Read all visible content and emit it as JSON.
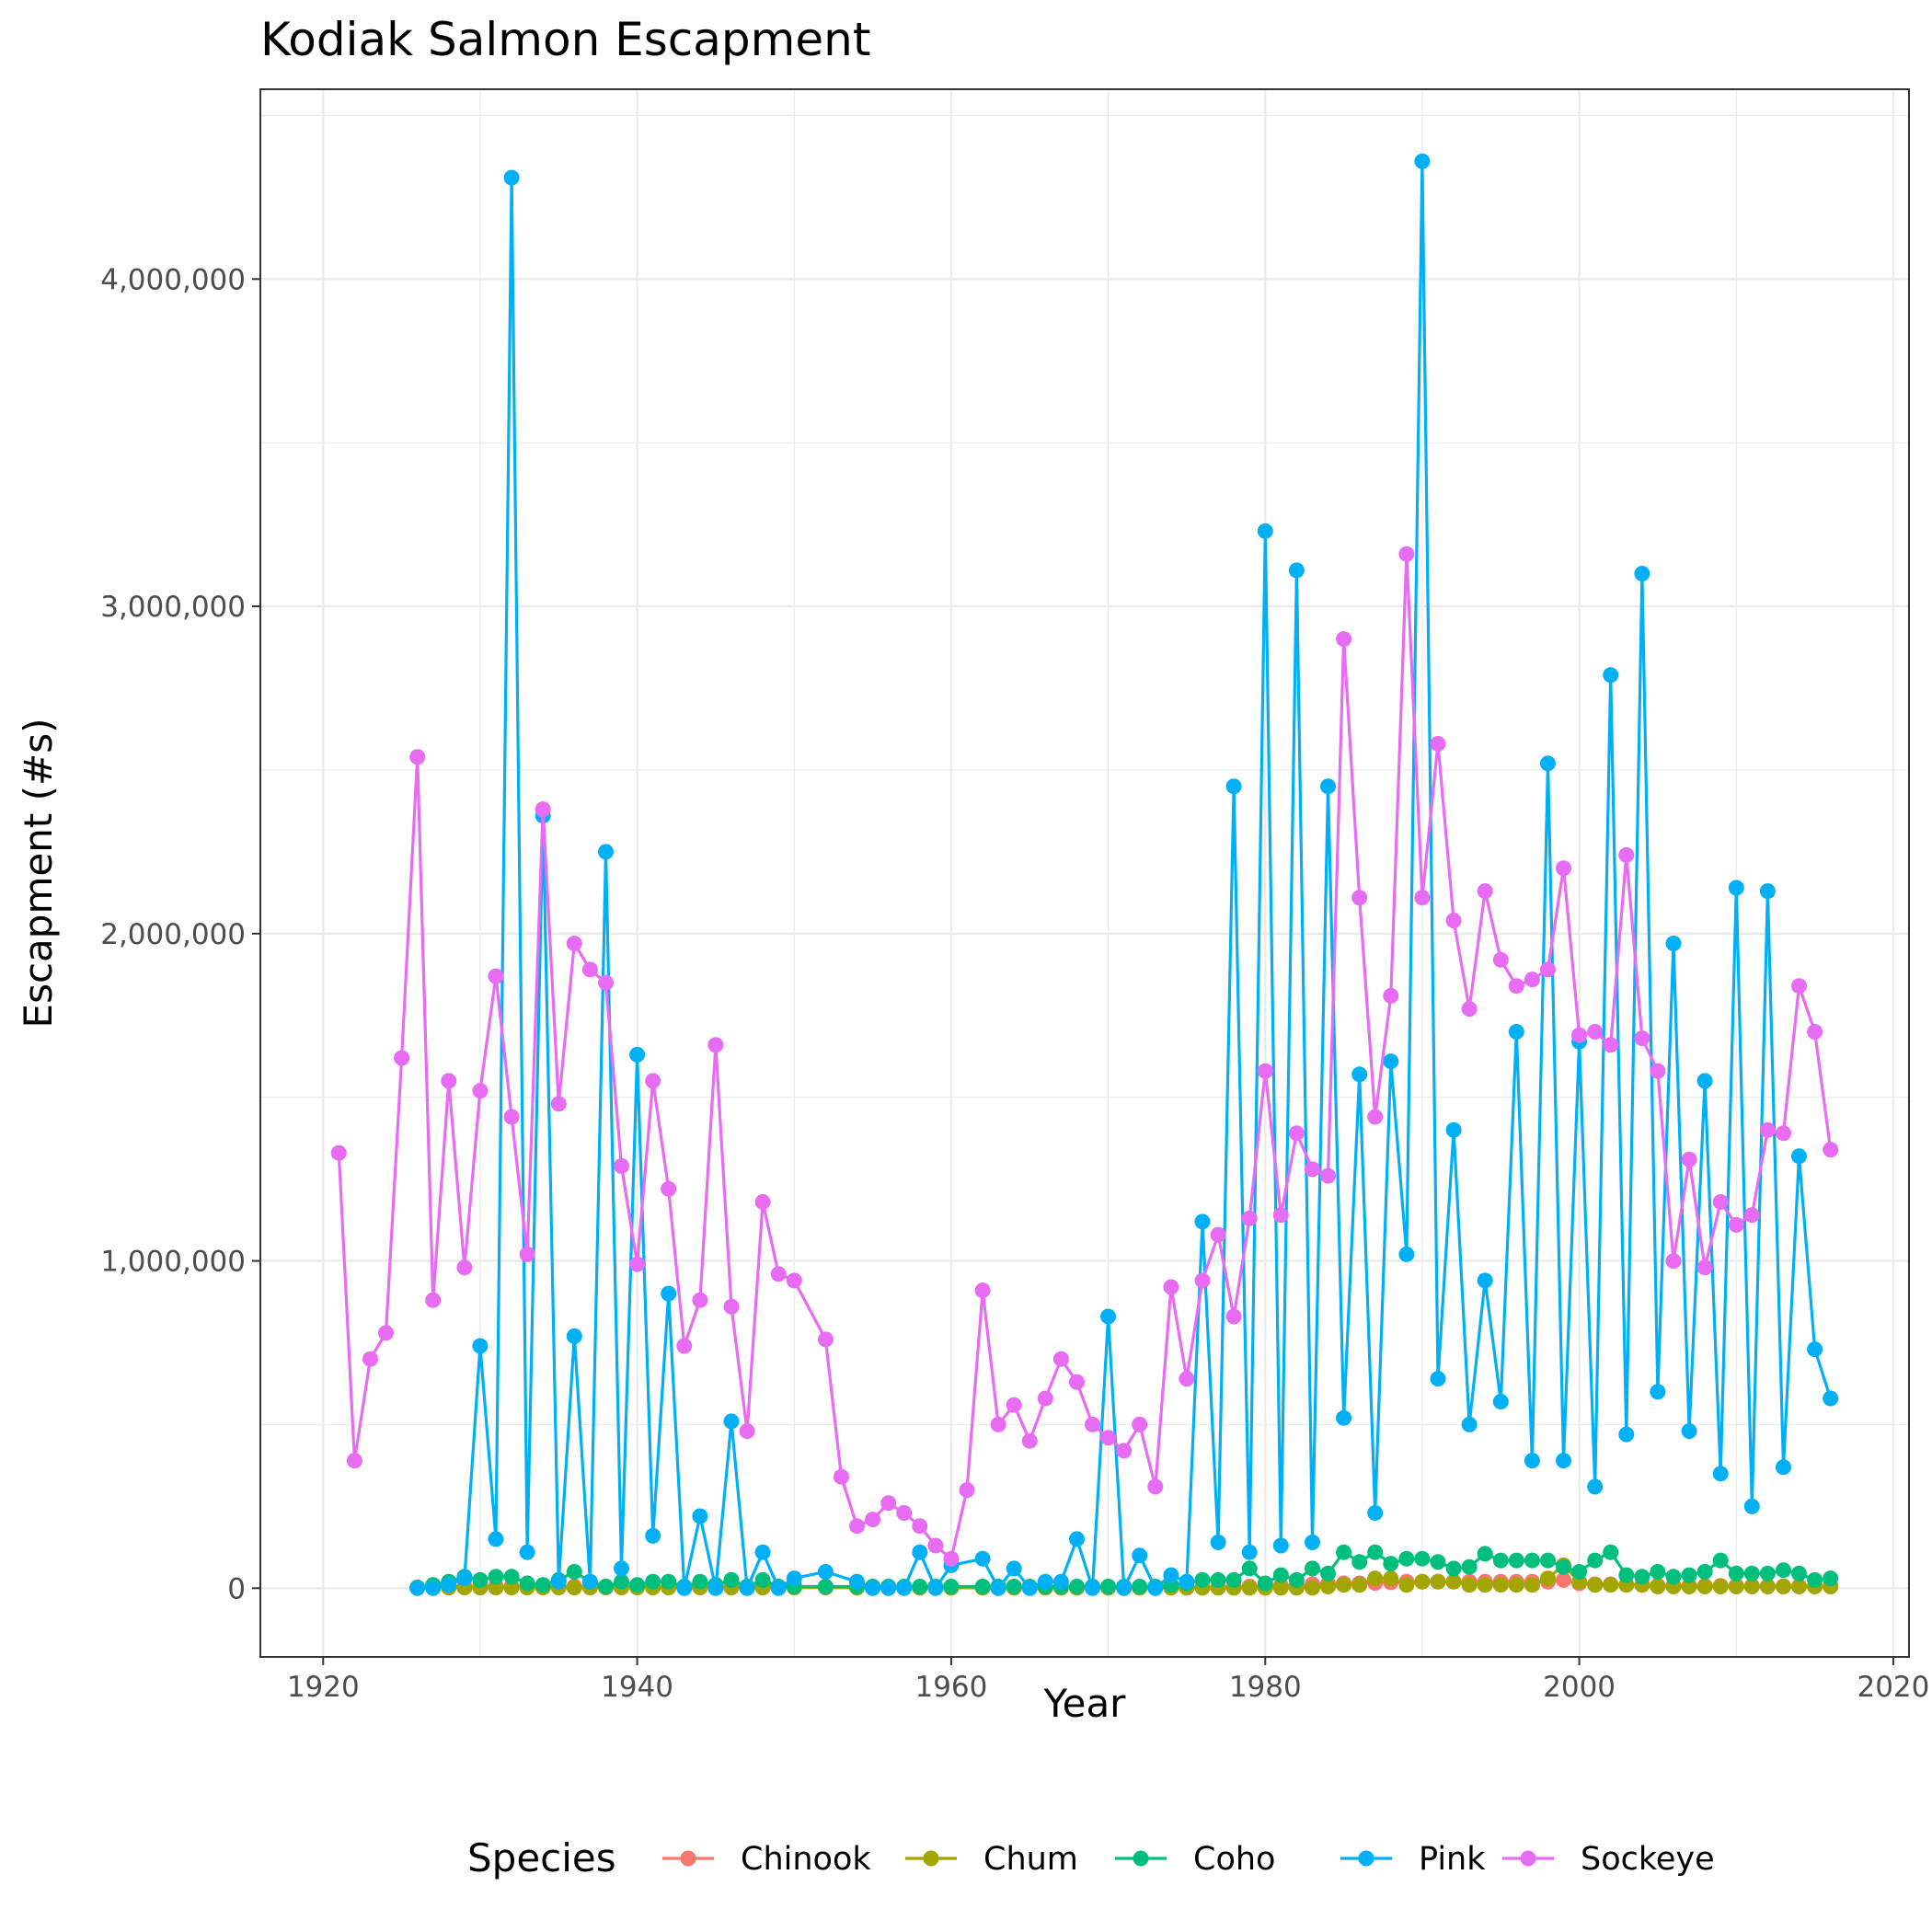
{
  "chart_data": {
    "type": "line",
    "title": "Kodiak Salmon Escapment",
    "xlabel": "Year",
    "ylabel": "Escapment (#s)",
    "xlim": [
      1916,
      2021
    ],
    "ylim": [
      -210000,
      4580000
    ],
    "x_ticks": [
      1920,
      1940,
      1960,
      1980,
      2000,
      2020
    ],
    "x_tick_labels": [
      "1920",
      "1940",
      "1960",
      "1980",
      "2000",
      "2020"
    ],
    "y_ticks": [
      0,
      1000000,
      2000000,
      3000000,
      4000000
    ],
    "y_tick_labels": [
      "0",
      "1,000,000",
      "2,000,000",
      "3,000,000",
      "4,000,000"
    ],
    "y_minor_ticks": [
      500000,
      1500000,
      2500000,
      3500000,
      4500000
    ],
    "grid": true,
    "legend": {
      "title": "Species",
      "position": "bottom"
    },
    "series": [
      {
        "name": "Chinook",
        "color": "#F8766D",
        "x": [
          1926,
          1927,
          1928,
          1929,
          1930,
          1931,
          1932,
          1933,
          1934,
          1935,
          1936,
          1937,
          1938,
          1939,
          1940,
          1941,
          1942,
          1943,
          1944,
          1945,
          1946,
          1947,
          1948,
          1949,
          1950,
          1952,
          1954,
          1955,
          1956,
          1957,
          1958,
          1959,
          1960,
          1962,
          1963,
          1964,
          1965,
          1966,
          1967,
          1968,
          1969,
          1970,
          1971,
          1972,
          1973,
          1974,
          1975,
          1976,
          1977,
          1978,
          1979,
          1980,
          1981,
          1982,
          1983,
          1984,
          1985,
          1986,
          1987,
          1988,
          1989,
          1990,
          1991,
          1992,
          1993,
          1994,
          1995,
          1996,
          1997,
          1998,
          1999,
          2000,
          2001,
          2002,
          2003,
          2004,
          2005,
          2006,
          2007,
          2008,
          2009,
          2010,
          2011,
          2012,
          2013,
          2014,
          2015,
          2016
        ],
        "y": [
          2000,
          2000,
          5000,
          5000,
          5000,
          5000,
          5000,
          5000,
          5000,
          5000,
          5000,
          5000,
          5000,
          5000,
          5000,
          5000,
          5000,
          5000,
          5000,
          5000,
          5000,
          5000,
          5000,
          5000,
          5000,
          5000,
          2000,
          2000,
          2000,
          2000,
          2000,
          2000,
          2000,
          2000,
          2000,
          2000,
          2000,
          2000,
          2000,
          2000,
          2000,
          2000,
          2000,
          2000,
          2000,
          2000,
          3000,
          3000,
          3000,
          3000,
          5000,
          6000,
          8000,
          10000,
          12000,
          14000,
          15000,
          15000,
          16000,
          18000,
          20000,
          20000,
          20000,
          20000,
          20000,
          20000,
          20000,
          20000,
          20000,
          20000,
          25000,
          15000,
          12000,
          12000,
          10000,
          10000,
          8000,
          8000,
          7000,
          7000,
          7000,
          7000,
          7000,
          6000,
          6000,
          6000,
          6000,
          6000
        ]
      },
      {
        "name": "Chum",
        "color": "#A3A500",
        "x": [
          1926,
          1927,
          1928,
          1929,
          1930,
          1931,
          1932,
          1933,
          1934,
          1935,
          1936,
          1937,
          1938,
          1939,
          1940,
          1941,
          1942,
          1943,
          1944,
          1945,
          1946,
          1947,
          1948,
          1949,
          1950,
          1952,
          1954,
          1955,
          1956,
          1957,
          1958,
          1959,
          1960,
          1962,
          1963,
          1964,
          1965,
          1966,
          1967,
          1968,
          1969,
          1970,
          1971,
          1972,
          1973,
          1974,
          1975,
          1976,
          1977,
          1978,
          1979,
          1980,
          1981,
          1982,
          1983,
          1984,
          1985,
          1986,
          1987,
          1988,
          1989,
          1990,
          1991,
          1992,
          1993,
          1994,
          1995,
          1996,
          1997,
          1998,
          1999,
          2000,
          2001,
          2002,
          2003,
          2004,
          2005,
          2006,
          2007,
          2008,
          2009,
          2010,
          2011,
          2012,
          2013,
          2014,
          2015,
          2016
        ],
        "y": [
          2000,
          2000,
          2000,
          2000,
          2000,
          2000,
          2000,
          2000,
          2000,
          2000,
          2000,
          2000,
          2000,
          2000,
          2000,
          2000,
          2000,
          2000,
          2000,
          2000,
          2000,
          2000,
          2000,
          2000,
          2000,
          2000,
          1000,
          1000,
          1000,
          1000,
          1000,
          1000,
          1000,
          1000,
          1000,
          1000,
          1000,
          1000,
          1000,
          1000,
          1000,
          1000,
          1000,
          1000,
          1000,
          1000,
          1000,
          1000,
          1000,
          1000,
          1000,
          1000,
          1000,
          1000,
          1000,
          5000,
          10000,
          10000,
          30000,
          30000,
          10000,
          20000,
          20000,
          20000,
          10000,
          10000,
          10000,
          10000,
          10000,
          30000,
          70000,
          20000,
          10000,
          10000,
          10000,
          10000,
          5000,
          5000,
          5000,
          5000,
          5000,
          5000,
          5000,
          5000,
          5000,
          5000,
          5000,
          5000
        ]
      },
      {
        "name": "Coho",
        "color": "#00BF7D",
        "x": [
          1926,
          1927,
          1928,
          1929,
          1930,
          1931,
          1932,
          1933,
          1934,
          1935,
          1936,
          1937,
          1938,
          1939,
          1940,
          1941,
          1942,
          1943,
          1944,
          1945,
          1946,
          1947,
          1948,
          1949,
          1950,
          1952,
          1954,
          1955,
          1956,
          1957,
          1958,
          1959,
          1960,
          1962,
          1963,
          1964,
          1965,
          1966,
          1967,
          1968,
          1969,
          1970,
          1971,
          1972,
          1973,
          1974,
          1975,
          1976,
          1977,
          1978,
          1979,
          1980,
          1981,
          1982,
          1983,
          1984,
          1985,
          1986,
          1987,
          1988,
          1989,
          1990,
          1991,
          1992,
          1993,
          1994,
          1995,
          1996,
          1997,
          1998,
          1999,
          2000,
          2001,
          2002,
          2003,
          2004,
          2005,
          2006,
          2007,
          2008,
          2009,
          2010,
          2011,
          2012,
          2013,
          2014,
          2015,
          2016
        ],
        "y": [
          2000,
          10000,
          20000,
          35000,
          25000,
          35000,
          35000,
          15000,
          10000,
          25000,
          50000,
          20000,
          5000,
          20000,
          10000,
          20000,
          20000,
          5000,
          20000,
          10000,
          25000,
          5000,
          25000,
          5000,
          5000,
          5000,
          5000,
          5000,
          5000,
          5000,
          5000,
          5000,
          5000,
          5000,
          5000,
          5000,
          5000,
          5000,
          5000,
          5000,
          5000,
          5000,
          5000,
          5000,
          5000,
          10000,
          15000,
          25000,
          25000,
          25000,
          60000,
          15000,
          40000,
          25000,
          60000,
          45000,
          110000,
          80000,
          110000,
          75000,
          90000,
          90000,
          80000,
          60000,
          65000,
          105000,
          85000,
          85000,
          85000,
          85000,
          65000,
          50000,
          85000,
          110000,
          40000,
          35000,
          50000,
          35000,
          40000,
          50000,
          85000,
          45000,
          45000,
          45000,
          55000,
          45000,
          25000,
          30000
        ]
      },
      {
        "name": "Pink",
        "color": "#00B0F6",
        "x": [
          1926,
          1927,
          1928,
          1929,
          1930,
          1931,
          1932,
          1933,
          1934,
          1935,
          1936,
          1937,
          1938,
          1939,
          1940,
          1941,
          1942,
          1943,
          1944,
          1945,
          1946,
          1947,
          1948,
          1949,
          1950,
          1952,
          1954,
          1955,
          1956,
          1957,
          1958,
          1959,
          1960,
          1962,
          1963,
          1964,
          1965,
          1966,
          1967,
          1968,
          1969,
          1970,
          1971,
          1972,
          1973,
          1974,
          1975,
          1976,
          1977,
          1978,
          1979,
          1980,
          1981,
          1982,
          1983,
          1984,
          1985,
          1986,
          1987,
          1988,
          1989,
          1990,
          1991,
          1992,
          1993,
          1994,
          1995,
          1996,
          1997,
          1998,
          1999,
          2000,
          2001,
          2002,
          2003,
          2004,
          2005,
          2006,
          2007,
          2008,
          2009,
          2010,
          2011,
          2012,
          2013,
          2014,
          2015,
          2016
        ],
        "y": [
          0,
          0,
          10000,
          30000,
          740000,
          150000,
          4310000,
          110000,
          2360000,
          20000,
          770000,
          20000,
          2250000,
          60000,
          1630000,
          160000,
          900000,
          0,
          220000,
          0,
          510000,
          0,
          110000,
          0,
          30000,
          50000,
          20000,
          0,
          0,
          0,
          110000,
          0,
          70000,
          90000,
          0,
          60000,
          0,
          20000,
          20000,
          150000,
          0,
          830000,
          0,
          100000,
          0,
          40000,
          20000,
          1120000,
          140000,
          2450000,
          110000,
          3230000,
          130000,
          3110000,
          140000,
          2450000,
          520000,
          1570000,
          230000,
          1610000,
          1020000,
          4360000,
          640000,
          1400000,
          500000,
          940000,
          570000,
          1700000,
          390000,
          2520000,
          390000,
          1670000,
          310000,
          2790000,
          470000,
          3100000,
          600000,
          1970000,
          480000,
          1550000,
          350000,
          2140000,
          250000,
          2130000,
          370000,
          1320000,
          730000,
          580000
        ]
      },
      {
        "name": "Sockeye",
        "color": "#E76BF3",
        "x": [
          1921,
          1922,
          1923,
          1924,
          1925,
          1926,
          1927,
          1928,
          1929,
          1930,
          1931,
          1932,
          1933,
          1934,
          1935,
          1936,
          1937,
          1938,
          1939,
          1940,
          1941,
          1942,
          1943,
          1944,
          1945,
          1946,
          1947,
          1948,
          1949,
          1950,
          1952,
          1953,
          1954,
          1955,
          1956,
          1957,
          1958,
          1959,
          1960,
          1961,
          1962,
          1963,
          1964,
          1965,
          1966,
          1967,
          1968,
          1969,
          1970,
          1971,
          1972,
          1973,
          1974,
          1975,
          1976,
          1977,
          1978,
          1979,
          1980,
          1981,
          1982,
          1983,
          1984,
          1985,
          1986,
          1987,
          1988,
          1989,
          1990,
          1991,
          1992,
          1993,
          1994,
          1995,
          1996,
          1997,
          1998,
          1999,
          2000,
          2001,
          2002,
          2003,
          2004,
          2005,
          2006,
          2007,
          2008,
          2009,
          2010,
          2011,
          2012,
          2013,
          2014,
          2015,
          2016
        ],
        "y": [
          1330000,
          390000,
          700000,
          780000,
          1620000,
          2540000,
          880000,
          1550000,
          980000,
          1520000,
          1870000,
          1440000,
          1020000,
          2380000,
          1480000,
          1970000,
          1890000,
          1850000,
          1290000,
          990000,
          1550000,
          1220000,
          740000,
          880000,
          1660000,
          860000,
          480000,
          1180000,
          960000,
          940000,
          760000,
          340000,
          190000,
          210000,
          260000,
          230000,
          190000,
          130000,
          90000,
          300000,
          910000,
          500000,
          560000,
          450000,
          580000,
          700000,
          630000,
          500000,
          460000,
          420000,
          500000,
          310000,
          920000,
          640000,
          940000,
          1080000,
          830000,
          1130000,
          1580000,
          1140000,
          1390000,
          1280000,
          1260000,
          2900000,
          2110000,
          1440000,
          1810000,
          3160000,
          2110000,
          2580000,
          2040000,
          1770000,
          2130000,
          1920000,
          1840000,
          1860000,
          1890000,
          2200000,
          1690000,
          1700000,
          1660000,
          2240000,
          1680000,
          1580000,
          1000000,
          1310000,
          980000,
          1180000,
          1110000,
          1140000,
          1400000,
          1390000,
          1840000,
          1700000,
          1340000
        ]
      }
    ]
  }
}
